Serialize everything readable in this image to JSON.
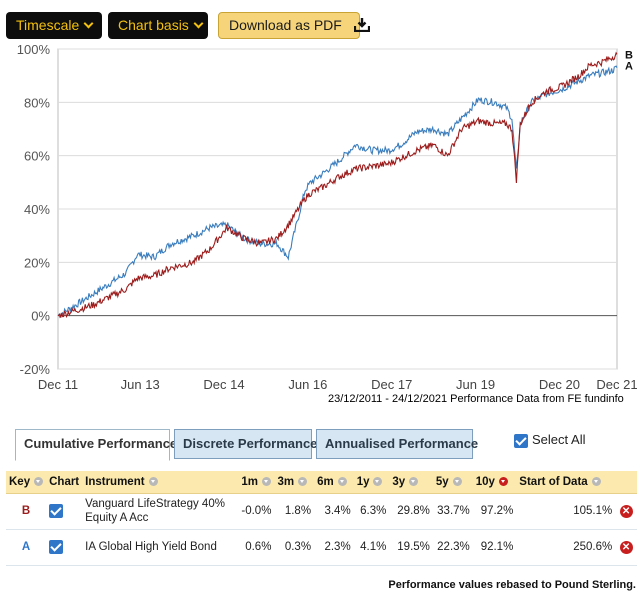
{
  "toolbar": {
    "timescale_label": "Timescale",
    "chart_basis_label": "Chart basis",
    "download_label": "Download as PDF"
  },
  "chart_data": {
    "type": "line",
    "y_ticks": [
      "100%",
      "80%",
      "60%",
      "40%",
      "20%",
      "0%",
      "-20%"
    ],
    "x_ticks": [
      "Dec 11",
      "Jun 13",
      "Dec 14",
      "Jun 16",
      "Dec 17",
      "Jun 19",
      "Dec 20",
      "Dec 21"
    ],
    "ylim": [
      -20,
      100
    ],
    "xlim": [
      "2011-12-23",
      "2021-12-24"
    ],
    "grid": "horizontal",
    "series": [
      {
        "name": "A",
        "color": "#3a7dbd",
        "x": [
          2011.98,
          2012.3,
          2012.6,
          2012.9,
          2013.2,
          2013.4,
          2013.7,
          2014.0,
          2014.4,
          2014.7,
          2015.0,
          2015.3,
          2015.6,
          2015.9,
          2016.1,
          2016.4,
          2016.5,
          2016.7,
          2017.0,
          2017.3,
          2017.6,
          2017.9,
          2018.1,
          2018.4,
          2018.7,
          2018.95,
          2019.2,
          2019.5,
          2019.8,
          2020.0,
          2020.1,
          2020.18,
          2020.25,
          2020.45,
          2020.7,
          2021.0,
          2021.3,
          2021.5,
          2021.7,
          2021.9,
          2021.98
        ],
        "y": [
          0,
          4,
          8,
          12,
          16,
          23,
          22,
          27,
          30,
          33,
          34,
          29,
          27,
          27,
          22,
          47,
          50,
          53,
          58,
          64,
          62,
          62,
          64,
          69,
          70,
          68,
          74,
          81,
          80,
          78,
          74,
          54,
          72,
          80,
          83,
          85,
          88,
          90,
          91,
          92,
          93
        ]
      },
      {
        "name": "B",
        "color": "#9c1c1c",
        "x": [
          2011.98,
          2012.3,
          2012.6,
          2012.9,
          2013.2,
          2013.4,
          2013.7,
          2014.0,
          2014.4,
          2014.7,
          2015.0,
          2015.3,
          2015.6,
          2015.9,
          2016.1,
          2016.4,
          2016.5,
          2016.7,
          2017.0,
          2017.3,
          2017.6,
          2017.9,
          2018.1,
          2018.4,
          2018.7,
          2018.95,
          2019.2,
          2019.5,
          2019.8,
          2020.0,
          2020.1,
          2020.18,
          2020.25,
          2020.45,
          2020.7,
          2021.0,
          2021.3,
          2021.5,
          2021.7,
          2021.9,
          2021.98
        ],
        "y": [
          0,
          2,
          4,
          7,
          10,
          14,
          15,
          18,
          20,
          25,
          33,
          29,
          27,
          29,
          34,
          44,
          46,
          48,
          52,
          55,
          56,
          57,
          59,
          62,
          64,
          60,
          70,
          73,
          72,
          72,
          70,
          51,
          72,
          80,
          84,
          86,
          90,
          94,
          95,
          97,
          98
        ]
      }
    ]
  },
  "chart_credit": "23/12/2011 - 24/12/2021 Performance Data from FE fundinfo",
  "tabs": {
    "cumulative": "Cumulative Performance",
    "discrete": "Discrete Performance",
    "annualised": "Annualised Performance"
  },
  "select_all_label": "Select All",
  "table": {
    "headers": {
      "key": "Key",
      "chart": "Chart",
      "instrument": "Instrument",
      "m1": "1m",
      "m3": "3m",
      "m6": "6m",
      "y1": "1y",
      "y3": "3y",
      "y5": "5y",
      "y10": "10y",
      "start": "Start of Data"
    },
    "rows": [
      {
        "key": "B",
        "key_color": "#9c1c1c",
        "instrument": "Vanguard LifeStrategy 40% Equity A Acc",
        "m1": "-0.0%",
        "m3": "1.8%",
        "m6": "3.4%",
        "y1": "6.3%",
        "y3": "29.8%",
        "y5": "33.7%",
        "y10": "97.2%",
        "start": "105.1%"
      },
      {
        "key": "A",
        "key_color": "#2f76c9",
        "instrument": "IA Global High Yield Bond",
        "m1": "0.6%",
        "m3": "0.3%",
        "m6": "2.3%",
        "y1": "4.1%",
        "y3": "19.5%",
        "y5": "22.3%",
        "y10": "92.1%",
        "start": "250.6%"
      }
    ]
  },
  "footer_note": "Performance values rebased to Pound Sterling."
}
